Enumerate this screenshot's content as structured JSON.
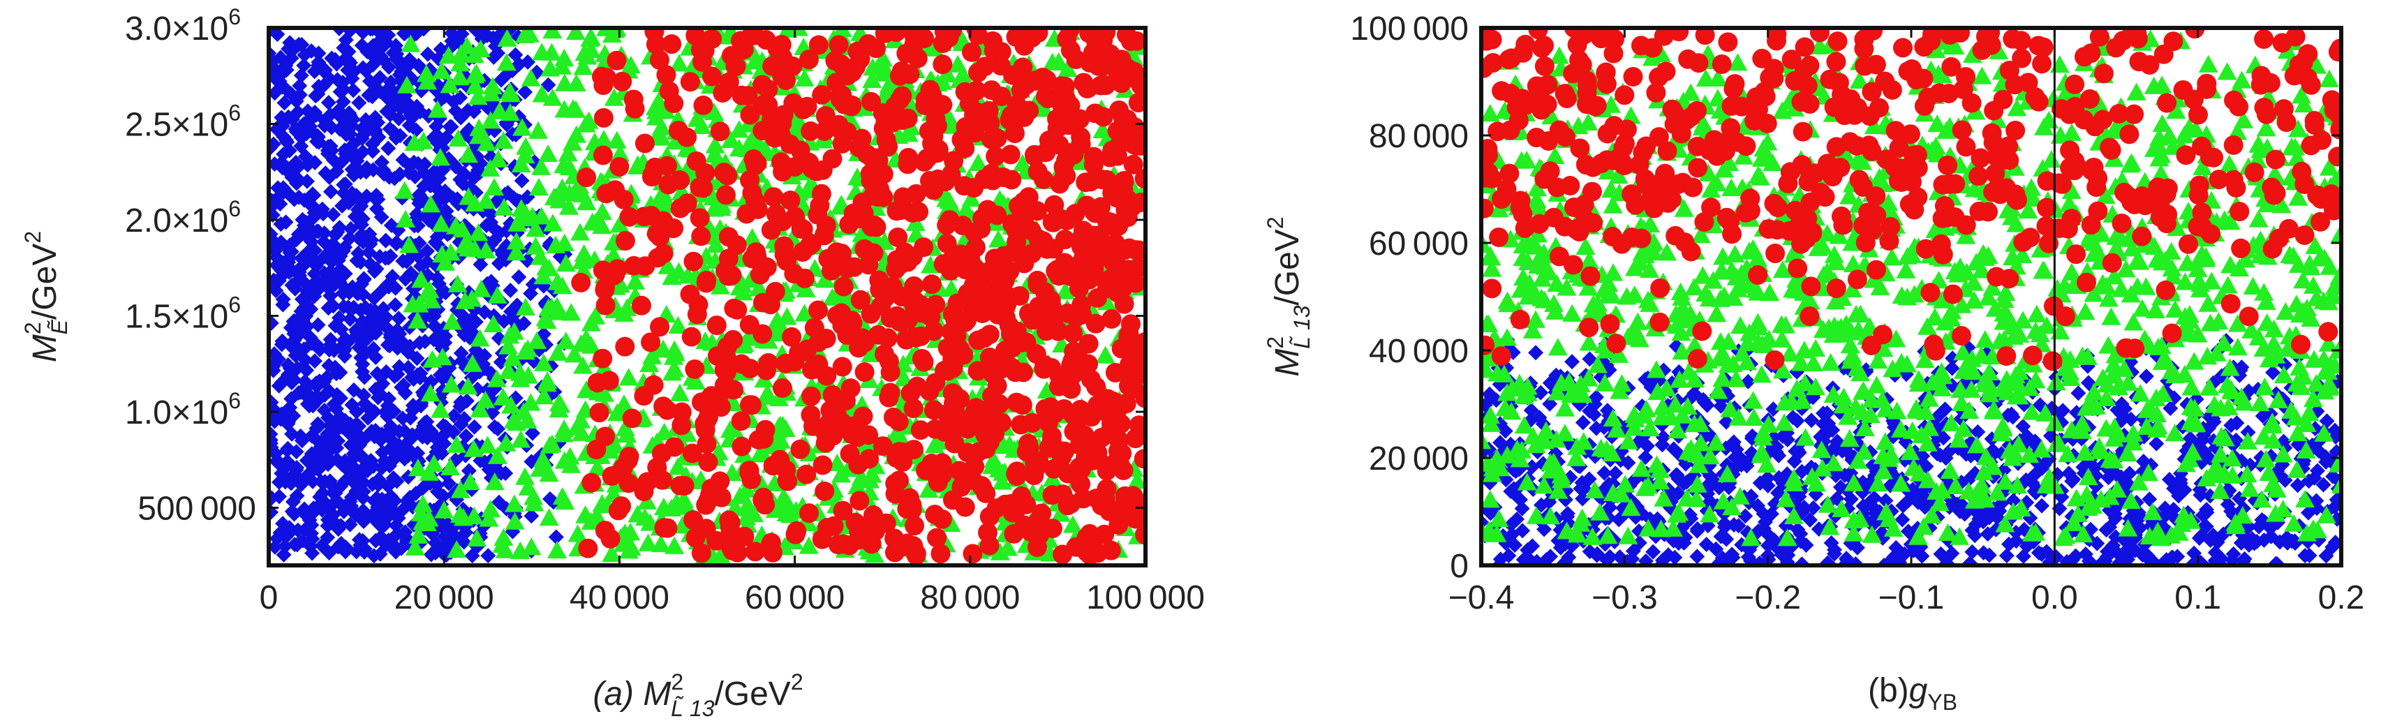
{
  "chart_data": [
    {
      "type": "scatter",
      "panel": "a",
      "xlabel": {
        "prefix": "(a) ",
        "main": "M",
        "sup": "2",
        "sub": "L̃ 13",
        "unit": "/GeV",
        "unit_sup": "2"
      },
      "ylabel": {
        "main": "M",
        "sup": "2",
        "sub": "Ẽ",
        "unit": "/GeV",
        "unit_sup": "2"
      },
      "xlim": [
        0,
        100000
      ],
      "ylim": [
        200000,
        3000000
      ],
      "xticks": [
        {
          "value": 0,
          "label": "0"
        },
        {
          "value": 20000,
          "label": "20 000"
        },
        {
          "value": 40000,
          "label": "40 000"
        },
        {
          "value": 60000,
          "label": "60 000"
        },
        {
          "value": 80000,
          "label": "80 000"
        },
        {
          "value": 100000,
          "label": "100 000"
        }
      ],
      "yticks": [
        {
          "value": 500000,
          "label": "500 000"
        },
        {
          "value": 1000000,
          "label": "1.0×10",
          "exp": "6"
        },
        {
          "value": 1500000,
          "label": "1.5×10",
          "exp": "6"
        },
        {
          "value": 2000000,
          "label": "2.0×10",
          "exp": "6"
        },
        {
          "value": 2500000,
          "label": "2.5×10",
          "exp": "6"
        },
        {
          "value": 3000000,
          "label": "3.0×10",
          "exp": "6"
        }
      ],
      "grid": false,
      "series": [
        {
          "marker": "diamond",
          "color": "#1010e0",
          "region": {
            "xmin": 0,
            "xmax": 35000,
            "ymin": 250000,
            "ymax": 3000000
          },
          "count": 1500,
          "density": "very dense for x < 20000, sparse to 35000"
        },
        {
          "marker": "triangle",
          "color": "#22ee22",
          "region": {
            "xmin": 15000,
            "xmax": 100000,
            "ymin": 250000,
            "ymax": 3000000
          },
          "count": 1300,
          "density": "dense for 20000 < x < 70000"
        },
        {
          "marker": "circle",
          "color": "#ee1111",
          "region": {
            "xmin": 35000,
            "xmax": 100000,
            "ymin": 250000,
            "ymax": 3000000
          },
          "count": 1100,
          "density": "increasing with x, very dense for x > 70000"
        }
      ]
    },
    {
      "type": "scatter",
      "panel": "b",
      "xlabel": {
        "prefix": "(b)",
        "main": "g",
        "sub": "YB"
      },
      "ylabel": {
        "main": "M",
        "sup": "2",
        "sub": "L̃ 13",
        "unit": "/GeV",
        "unit_sup": "2"
      },
      "xlim": [
        -0.4,
        0.2
      ],
      "ylim": [
        0,
        100000
      ],
      "xticks": [
        {
          "value": -0.4,
          "label": "−0.4"
        },
        {
          "value": -0.3,
          "label": "−0.3"
        },
        {
          "value": -0.2,
          "label": "−0.2"
        },
        {
          "value": -0.1,
          "label": "−0.1"
        },
        {
          "value": 0.0,
          "label": "0.0"
        },
        {
          "value": 0.1,
          "label": "0.1"
        },
        {
          "value": 0.2,
          "label": "0.2"
        }
      ],
      "yticks": [
        {
          "value": 0,
          "label": "0"
        },
        {
          "value": 20000,
          "label": "20 000"
        },
        {
          "value": 40000,
          "label": "40 000"
        },
        {
          "value": 60000,
          "label": "60 000"
        },
        {
          "value": 80000,
          "label": "80 000"
        },
        {
          "value": 100000,
          "label": "100 000"
        }
      ],
      "grid": false,
      "zero_line": 0.0,
      "series": [
        {
          "marker": "diamond",
          "color": "#1010e0",
          "region": {
            "xmin": -0.4,
            "xmax": 0.2,
            "ymin": 0,
            "ymax": 42000
          },
          "count": 1200,
          "density": "dense below 20000, sparser toward 40000"
        },
        {
          "marker": "triangle",
          "color": "#22ee22",
          "region": {
            "xmin": -0.4,
            "xmax": 0.2,
            "ymin": 5000,
            "ymax": 98000
          },
          "count": 1400,
          "density": "dense between 20000 and 65000"
        },
        {
          "marker": "circle",
          "color": "#ee1111",
          "region": {
            "xmin": -0.4,
            "xmax": 0.2,
            "ymin": 38000,
            "ymax": 100000
          },
          "count": 520,
          "density": "dense above 60000, denser for x < -0.1"
        }
      ]
    }
  ]
}
